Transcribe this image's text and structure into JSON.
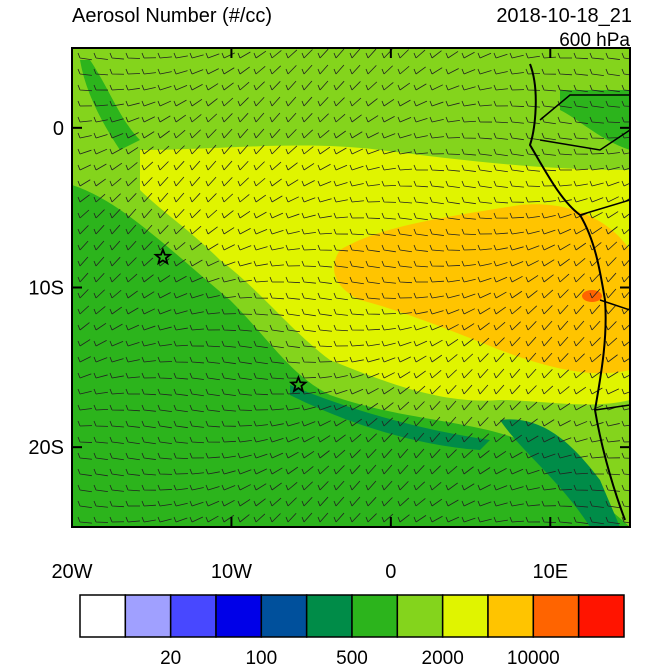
{
  "title": "Aerosol Number (#/cc)",
  "date": "2018-10-18_21",
  "level": "600 hPa",
  "map": {
    "xlim": [
      -20,
      15
    ],
    "ylim": [
      -25,
      5
    ],
    "xticks": [
      {
        "value": -20,
        "label": "20W"
      },
      {
        "value": -10,
        "label": "10W"
      },
      {
        "value": 0,
        "label": "0"
      },
      {
        "value": 10,
        "label": "10E"
      }
    ],
    "yticks": [
      {
        "value": 0,
        "label": "0"
      },
      {
        "value": -10,
        "label": "10S"
      },
      {
        "value": -20,
        "label": "20S"
      }
    ],
    "markers": [
      {
        "lon": -14.3,
        "lat": -8.1
      },
      {
        "lon": -5.8,
        "lat": -16.1
      }
    ]
  },
  "colorbar": {
    "colors": [
      "#ffffff",
      "#a0a0ff",
      "#4848ff",
      "#0000e8",
      "#00509c",
      "#008c48",
      "#2cb41c",
      "#84d41c",
      "#e0f400",
      "#ffc400",
      "#ff6400",
      "#ff1400"
    ],
    "labels": [
      20,
      100,
      500,
      2000,
      10000
    ]
  }
}
